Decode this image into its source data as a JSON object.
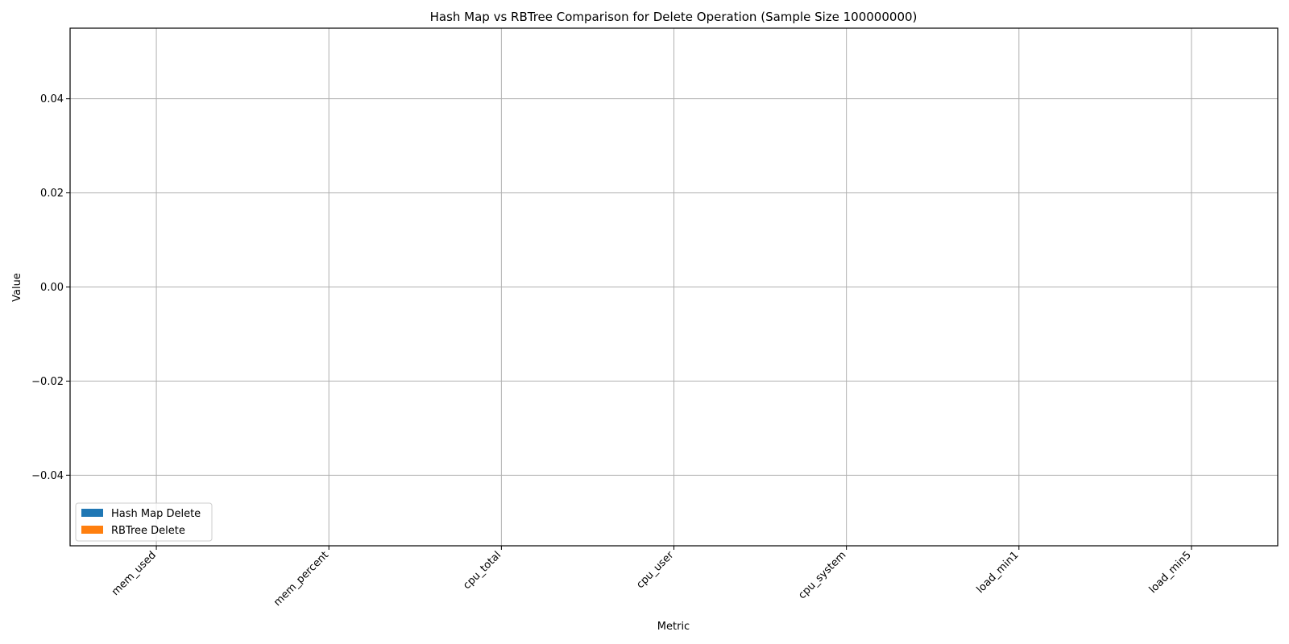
{
  "chart_data": {
    "type": "bar",
    "title": "Hash Map vs RBTree Comparison for Delete Operation (Sample Size 100000000)",
    "xlabel": "Metric",
    "ylabel": "Value",
    "categories": [
      "mem_used",
      "mem_percent",
      "cpu_total",
      "cpu_user",
      "cpu_system",
      "load_min1",
      "load_min5"
    ],
    "series": [
      {
        "name": "Hash Map Delete",
        "color": "#1f77b4",
        "values": [
          null,
          null,
          null,
          null,
          null,
          null,
          null
        ]
      },
      {
        "name": "RBTree Delete",
        "color": "#ff7f0e",
        "values": [
          null,
          null,
          null,
          null,
          null,
          null,
          null
        ]
      }
    ],
    "ylim": [
      -0.055,
      0.055
    ],
    "yticks": [
      -0.04,
      -0.02,
      0.0,
      0.02,
      0.04
    ],
    "ytick_labels": [
      "−0.04",
      "−0.02",
      "0.00",
      "0.02",
      "0.04"
    ],
    "grid": true,
    "legend_position": "lower-left"
  }
}
